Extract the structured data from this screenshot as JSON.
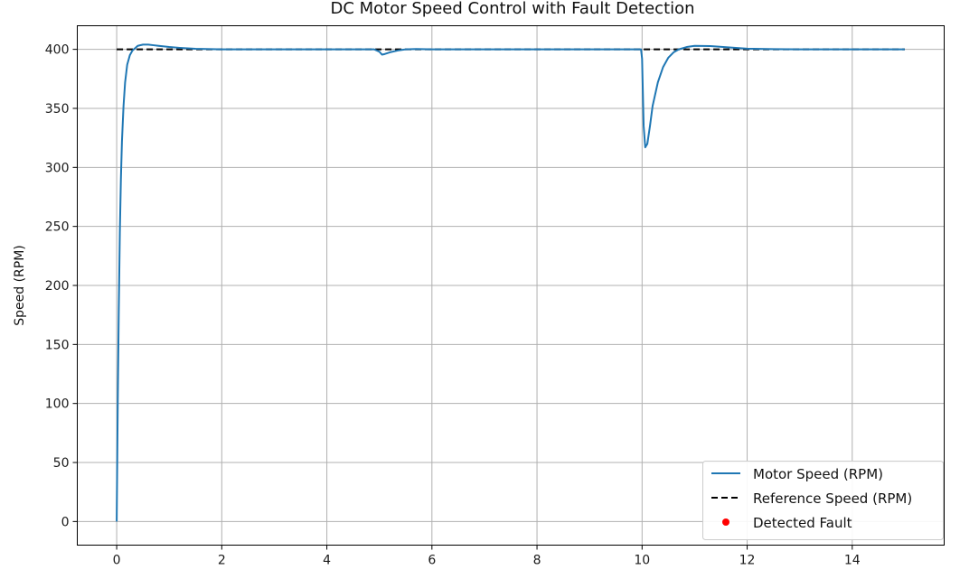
{
  "chart_data": {
    "type": "line",
    "title": "DC Motor Speed Control with Fault Detection",
    "xlabel": "",
    "ylabel": "Speed (RPM)",
    "xlim": [
      -0.75,
      15.75
    ],
    "ylim": [
      -20,
      420
    ],
    "x_ticks": [
      0,
      2,
      4,
      6,
      8,
      10,
      12,
      14
    ],
    "y_ticks": [
      0,
      50,
      100,
      150,
      200,
      250,
      300,
      350,
      400
    ],
    "grid": true,
    "legend_position": "lower-right",
    "series": [
      {
        "name": "Motor Speed (RPM)",
        "style": "solid",
        "color": "#1f77b4",
        "x": [
          0,
          0.02,
          0.04,
          0.06,
          0.08,
          0.1,
          0.13,
          0.16,
          0.2,
          0.25,
          0.3,
          0.35,
          0.4,
          0.5,
          0.6,
          0.7,
          0.8,
          1.0,
          1.2,
          1.5,
          2.0,
          3.0,
          4.0,
          4.9,
          5.0,
          5.05,
          5.1,
          5.2,
          5.35,
          5.5,
          5.7,
          6.0,
          8.0,
          9.5,
          9.98,
          10.0,
          10.03,
          10.06,
          10.1,
          10.15,
          10.2,
          10.3,
          10.4,
          10.5,
          10.6,
          10.7,
          10.85,
          11.0,
          11.3,
          11.6,
          12.0,
          12.5,
          13.0,
          14.0,
          15.0
        ],
        "values": [
          0,
          100,
          180,
          245,
          290,
          322,
          352,
          372,
          387,
          395,
          399,
          401,
          403,
          404,
          404,
          403.5,
          403,
          402,
          401.3,
          400.5,
          400,
          400,
          400,
          400,
          398,
          395.5,
          396,
          397.5,
          399,
          400,
          400.3,
          400,
          400,
          400,
          400,
          392,
          335,
          317,
          320,
          335,
          352,
          372,
          385,
          393,
          397.5,
          400,
          402,
          403,
          402.8,
          401.8,
          400.6,
          400.2,
          400,
          400,
          400
        ]
      },
      {
        "name": "Reference Speed (RPM)",
        "style": "dashed",
        "color": "#000000",
        "x": [
          0,
          15
        ],
        "values": [
          400,
          400
        ]
      },
      {
        "name": "Detected Fault",
        "style": "marker",
        "color": "#ff0000",
        "x": [],
        "values": []
      }
    ]
  }
}
